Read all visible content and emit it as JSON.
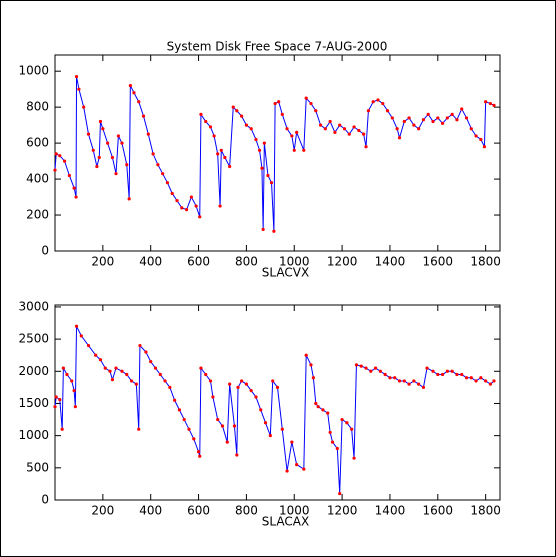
{
  "chart_data": [
    {
      "type": "line",
      "title": "System Disk Free Space  7-AUG-2000",
      "xlabel": "SLACVX",
      "x": [
        0,
        5,
        20,
        40,
        60,
        80,
        88,
        90,
        100,
        120,
        140,
        160,
        175,
        185,
        190,
        200,
        220,
        240,
        255,
        265,
        280,
        300,
        310,
        315,
        330,
        350,
        370,
        390,
        410,
        430,
        450,
        470,
        490,
        510,
        530,
        550,
        570,
        590,
        605,
        610,
        630,
        650,
        665,
        680,
        690,
        695,
        710,
        730,
        745,
        760,
        780,
        800,
        820,
        840,
        855,
        865,
        870,
        875,
        890,
        905,
        915,
        920,
        935,
        950,
        970,
        990,
        1000,
        1010,
        1040,
        1050,
        1070,
        1090,
        1110,
        1130,
        1150,
        1170,
        1190,
        1210,
        1230,
        1250,
        1270,
        1290,
        1300,
        1310,
        1330,
        1350,
        1370,
        1390,
        1410,
        1430,
        1440,
        1460,
        1480,
        1500,
        1520,
        1540,
        1560,
        1580,
        1600,
        1620,
        1640,
        1660,
        1680,
        1700,
        1720,
        1740,
        1760,
        1780,
        1795,
        1800,
        1820,
        1835
      ],
      "series": [
        {
          "color": "#0000ff",
          "marker_color": "#ff0000",
          "values": [
            450,
            540,
            530,
            500,
            420,
            350,
            300,
            970,
            900,
            800,
            650,
            560,
            470,
            520,
            720,
            680,
            600,
            520,
            430,
            640,
            600,
            480,
            290,
            920,
            880,
            830,
            750,
            650,
            540,
            480,
            430,
            380,
            320,
            280,
            240,
            230,
            300,
            250,
            190,
            760,
            720,
            690,
            640,
            540,
            250,
            560,
            520,
            470,
            800,
            780,
            750,
            700,
            680,
            620,
            560,
            460,
            120,
            600,
            420,
            380,
            110,
            820,
            830,
            760,
            680,
            640,
            560,
            660,
            560,
            850,
            820,
            780,
            700,
            680,
            720,
            660,
            700,
            680,
            650,
            690,
            670,
            650,
            580,
            780,
            830,
            840,
            820,
            780,
            740,
            680,
            630,
            720,
            740,
            700,
            680,
            730,
            760,
            720,
            740,
            710,
            740,
            760,
            730,
            790,
            740,
            680,
            640,
            620,
            580,
            830,
            820,
            810
          ]
        }
      ],
      "xlim": [
        0,
        1860
      ],
      "xticks": [
        200,
        400,
        600,
        800,
        1000,
        1200,
        1400,
        1600,
        1800
      ],
      "ylim": [
        0,
        1090
      ],
      "yticks": [
        0,
        200,
        400,
        600,
        800,
        1000
      ]
    },
    {
      "type": "line",
      "xlabel": "SLACAX",
      "x": [
        0,
        5,
        20,
        30,
        35,
        50,
        70,
        80,
        85,
        90,
        110,
        140,
        170,
        190,
        210,
        230,
        240,
        255,
        280,
        300,
        320,
        340,
        350,
        355,
        380,
        400,
        420,
        440,
        460,
        480,
        500,
        520,
        540,
        560,
        580,
        600,
        605,
        610,
        630,
        650,
        660,
        680,
        700,
        720,
        730,
        750,
        760,
        765,
        780,
        800,
        820,
        840,
        860,
        880,
        900,
        910,
        930,
        950,
        970,
        990,
        1010,
        1040,
        1050,
        1070,
        1080,
        1090,
        1100,
        1120,
        1140,
        1150,
        1160,
        1180,
        1190,
        1200,
        1220,
        1240,
        1250,
        1260,
        1280,
        1300,
        1320,
        1340,
        1360,
        1380,
        1400,
        1420,
        1440,
        1460,
        1480,
        1500,
        1520,
        1540,
        1555,
        1580,
        1600,
        1620,
        1640,
        1660,
        1680,
        1700,
        1720,
        1740,
        1760,
        1780,
        1800,
        1820,
        1835
      ],
      "series": [
        {
          "color": "#0000ff",
          "marker_color": "#ff0000",
          "values": [
            1450,
            1600,
            1560,
            1100,
            2050,
            1950,
            1850,
            1700,
            1450,
            2700,
            2550,
            2400,
            2250,
            2180,
            2050,
            2000,
            1870,
            2050,
            2000,
            1950,
            1850,
            1800,
            1100,
            2400,
            2300,
            2150,
            2050,
            1950,
            1850,
            1750,
            1550,
            1400,
            1250,
            1100,
            950,
            750,
            680,
            2050,
            1950,
            1850,
            1600,
            1250,
            1150,
            900,
            1800,
            1150,
            700,
            1750,
            1850,
            1800,
            1700,
            1600,
            1400,
            1200,
            1000,
            1850,
            1750,
            1100,
            450,
            900,
            550,
            480,
            2250,
            2100,
            1900,
            1500,
            1450,
            1400,
            1350,
            1050,
            900,
            800,
            100,
            1250,
            1200,
            1100,
            650,
            2100,
            2080,
            2050,
            2000,
            2050,
            2000,
            1950,
            1900,
            1900,
            1850,
            1850,
            1800,
            1850,
            1800,
            1750,
            2050,
            2000,
            1950,
            1950,
            2000,
            2000,
            1950,
            1950,
            1900,
            1900,
            1850,
            1900,
            1850,
            1800,
            1850
          ]
        }
      ],
      "xlim": [
        0,
        1860
      ],
      "xticks": [
        200,
        400,
        600,
        800,
        1000,
        1200,
        1400,
        1600,
        1800
      ],
      "ylim": [
        0,
        3030
      ],
      "yticks": [
        0,
        500,
        1000,
        1500,
        2000,
        2500,
        3000
      ]
    }
  ]
}
